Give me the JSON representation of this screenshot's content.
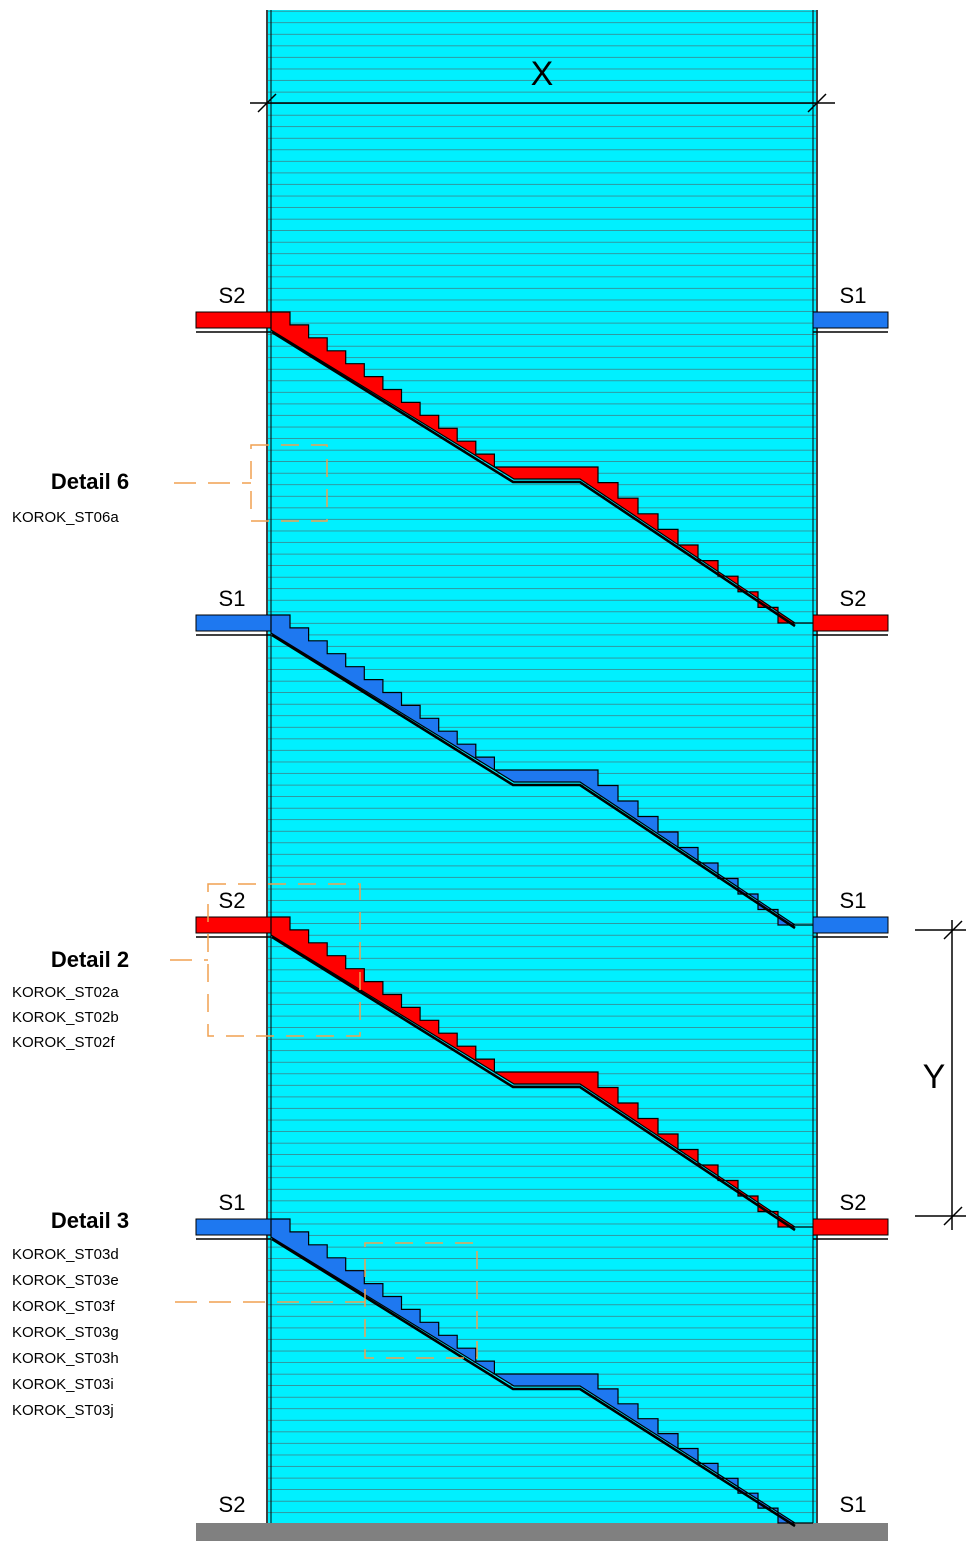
{
  "dimensions": {
    "x_label": "X",
    "y_label": "Y"
  },
  "colors": {
    "stairwell_fill": "#00f0ff",
    "hatch_line": "#4a6a70",
    "stair_s2": "#ff0000",
    "stair_s1": "#1e78f0",
    "callout": "#f0a050",
    "floor": "#808080",
    "outline": "#000000"
  },
  "levels": [
    {
      "left": "S2",
      "right": "S1"
    },
    {
      "left": "S1",
      "right": "S2"
    },
    {
      "left": "S2",
      "right": "S1"
    },
    {
      "left": "S1",
      "right": "S2"
    },
    {
      "left": "S2",
      "right": "S1"
    }
  ],
  "details": [
    {
      "title": "Detail 6",
      "codes": [
        "KOROK_ST06a"
      ]
    },
    {
      "title": "Detail 2",
      "codes": [
        "KOROK_ST02a",
        "KOROK_ST02b",
        "KOROK_ST02f"
      ]
    },
    {
      "title": "Detail 3",
      "codes": [
        "KOROK_ST03d",
        "KOROK_ST03e",
        "KOROK_ST03f",
        "KOROK_ST03g",
        "KOROK_ST03h",
        "KOROK_ST03i",
        "KOROK_ST03j"
      ]
    }
  ]
}
